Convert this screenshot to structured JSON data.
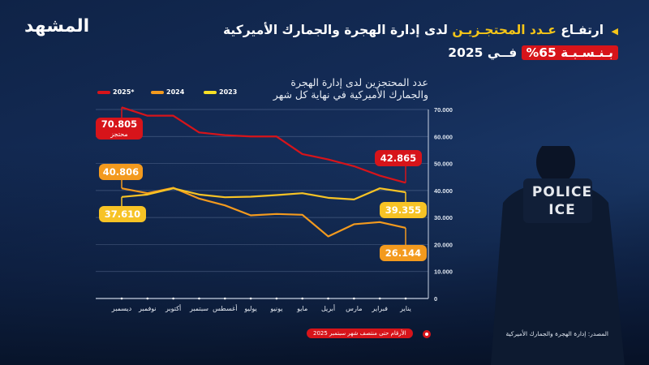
{
  "header": {
    "logo": "المشهد",
    "title_part1": "ارتفـاع",
    "title_highlight": "عـدد المحتجـزيـن",
    "title_part2": "لدى إدارة الهجرة والجمارك الأميركية",
    "title_badge": "بـنـسـبـة 65%",
    "title_part3": "فــي 2025"
  },
  "officer_patch": {
    "line1": "POLICE",
    "line2": "ICE"
  },
  "chart_data": {
    "type": "line",
    "title": "عدد المحتجزين لدى إدارة الهجرة والجمارك الأميركية في نهاية كل شهر",
    "subtitle_line1": "عدد المحتجزين لدى إدارة الهجرة",
    "subtitle_line2": "والجمارك الأميركية في نهاية كل شهر",
    "categories": [
      "يناير",
      "فبراير",
      "مارس",
      "أبريل",
      "مايو",
      "يونيو",
      "يوليو",
      "أغسطس",
      "سبتمبر",
      "أكتوبر",
      "نوفمبر",
      "ديسمبر"
    ],
    "x_direction": "right-to-left",
    "ylim": [
      0,
      70000
    ],
    "y_ticks": [
      "0",
      "10.000",
      "20.000",
      "30.000",
      "40.000",
      "50.000",
      "60.000",
      "70.000"
    ],
    "y_tick_values": [
      0,
      10000,
      20000,
      30000,
      40000,
      50000,
      60000,
      70000
    ],
    "grid": true,
    "legend_position": "top-left",
    "series": [
      {
        "name": "2025*",
        "color": "#d7141a",
        "values": [
          42865,
          45500,
          49000,
          51500,
          53500,
          60000,
          60000,
          60500,
          61500,
          67700,
          67700,
          70805
        ],
        "labels": [
          {
            "index": 0,
            "text": "42.865"
          },
          {
            "index": 11,
            "text": "70.805",
            "sub": "محتجز"
          }
        ]
      },
      {
        "name": "2024",
        "color": "#f39a1e",
        "values": [
          26144,
          28300,
          27500,
          23000,
          31000,
          31300,
          30800,
          34500,
          37000,
          41000,
          39000,
          40806
        ],
        "labels": [
          {
            "index": 0,
            "text": "26.144"
          },
          {
            "index": 11,
            "text": "40.806"
          }
        ]
      },
      {
        "name": "2023",
        "color": "#f7c325",
        "values": [
          39355,
          40800,
          36700,
          37300,
          39000,
          38300,
          37700,
          37500,
          38500,
          40800,
          38500,
          37610
        ],
        "labels": [
          {
            "index": 0,
            "text": "39.355"
          },
          {
            "index": 11,
            "text": "37.610"
          }
        ]
      }
    ]
  },
  "footer": {
    "note": "الأرقام حتى منتصف شهر سبتمبر 2025",
    "source": "المصدر: إدارة الهجرة والجمارك الأميركية"
  }
}
